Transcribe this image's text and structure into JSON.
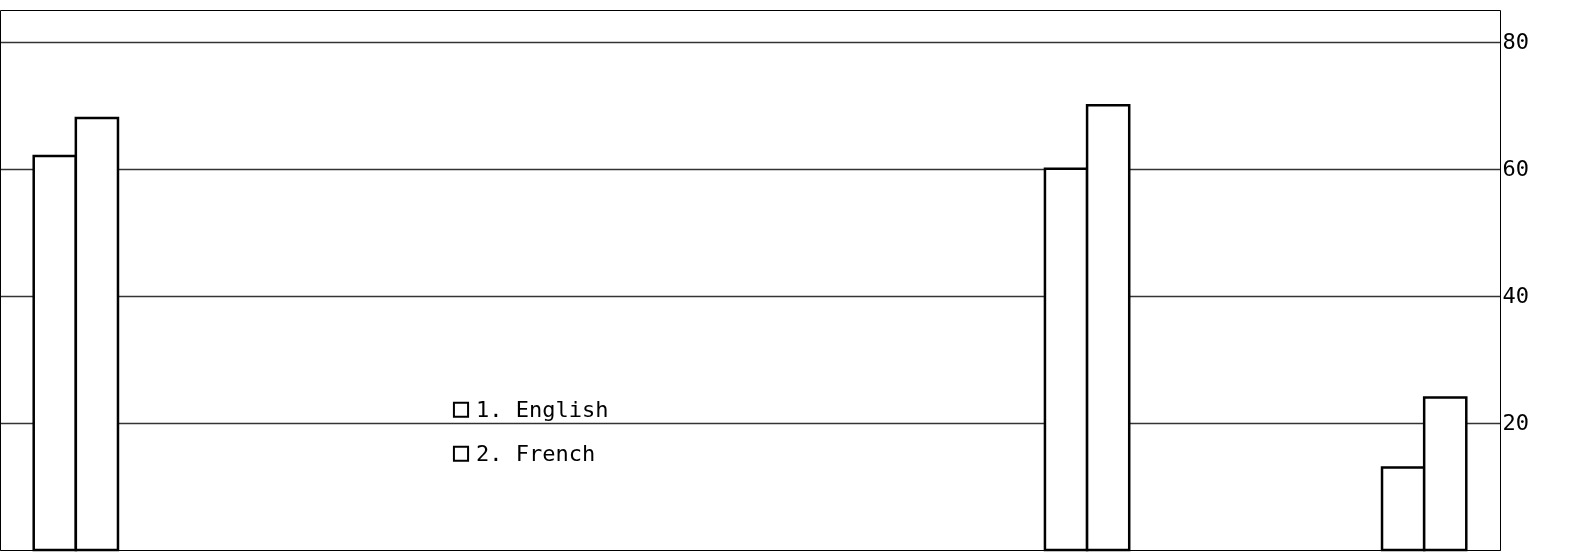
{
  "chart_data": {
    "type": "bar",
    "categories": [
      null,
      null,
      null,
      null,
      null
    ],
    "series": [
      {
        "name": "1. English",
        "color": "#ffffff",
        "values": [
          62,
          null,
          null,
          60,
          13
        ]
      },
      {
        "name": "2. French",
        "color": "#ffffff",
        "values": [
          68,
          null,
          null,
          70,
          24
        ]
      }
    ],
    "ylim": [
      0,
      85
    ],
    "yticks": [
      20,
      40,
      60,
      80
    ],
    "grid": "y",
    "legend": "bottom",
    "tick_labels": "y"
  }
}
